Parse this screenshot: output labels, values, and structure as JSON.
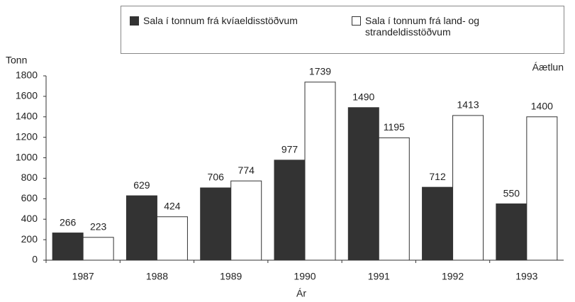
{
  "chart_data": {
    "type": "bar",
    "y_label": "Tonn",
    "x_label": "Ár",
    "annotation": "Áætlun",
    "categories": [
      "1987",
      "1988",
      "1989",
      "1990",
      "1991",
      "1992",
      "1993"
    ],
    "series": [
      {
        "name": "Sala í tonnum frá kvíaeldisstöðvum",
        "color": "#333333",
        "values": [
          266,
          629,
          706,
          977,
          1490,
          712,
          550
        ]
      },
      {
        "name": "Sala í tonnum frá land- og strandeldisstöðvum",
        "color": "#ffffff",
        "values": [
          223,
          424,
          774,
          1739,
          1195,
          1413,
          1400
        ]
      }
    ],
    "ylim": [
      0,
      1800
    ],
    "yticks": [
      0,
      200,
      400,
      600,
      800,
      1000,
      1200,
      1400,
      1600,
      1800
    ],
    "grid": false
  }
}
